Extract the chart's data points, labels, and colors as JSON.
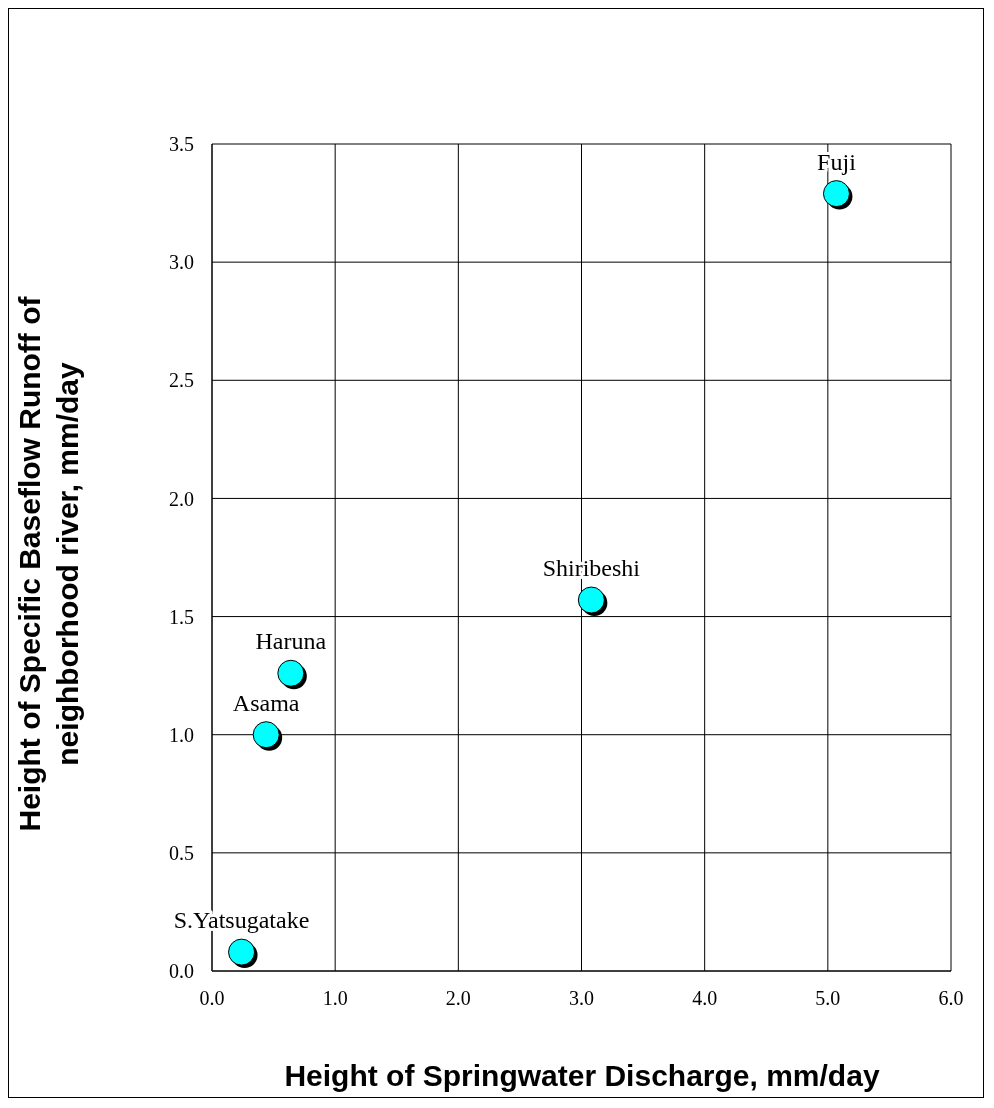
{
  "chart_data": {
    "type": "scatter",
    "xlabel": "Height of Springwater Discharge, mm/day",
    "ylabel": "Height of Specific Baseflow Runoff of\nneighborhood river, mm/day",
    "x": [
      0.24,
      0.44,
      0.64,
      3.08,
      5.07
    ],
    "series": [
      {
        "color": "#00ffff",
        "values": [
          0.08,
          1.0,
          1.26,
          1.57,
          3.29
        ]
      }
    ],
    "annotations": [
      {
        "text": "S.Yatsugatake",
        "x": 0.24,
        "y": 0.08
      },
      {
        "text": "Asama",
        "x": 0.44,
        "y": 1.0
      },
      {
        "text": "Haruna",
        "x": 0.64,
        "y": 1.26
      },
      {
        "text": "Shiribeshi",
        "x": 3.08,
        "y": 1.57
      },
      {
        "text": "Fuji",
        "x": 5.07,
        "y": 3.29
      }
    ],
    "xlim": [
      0,
      6
    ],
    "ylim": [
      0,
      3.5
    ],
    "xticks": [
      {
        "value": 0,
        "label": "0.0"
      },
      {
        "value": 1,
        "label": "1.0"
      },
      {
        "value": 2,
        "label": "2.0"
      },
      {
        "value": 3,
        "label": "3.0"
      },
      {
        "value": 4,
        "label": "4.0"
      },
      {
        "value": 5,
        "label": "5.0"
      },
      {
        "value": 6,
        "label": "6.0"
      }
    ],
    "yticks": [
      {
        "value": 0,
        "label": "0.0"
      },
      {
        "value": 0.5,
        "label": "0.5"
      },
      {
        "value": 1,
        "label": "1.0"
      },
      {
        "value": 1.5,
        "label": "1.5"
      },
      {
        "value": 2,
        "label": "2.0"
      },
      {
        "value": 2.5,
        "label": "2.5"
      },
      {
        "value": 3,
        "label": "3.0"
      },
      {
        "value": 3.5,
        "label": "3.5"
      }
    ],
    "grid": true,
    "legend": false,
    "marker": "circle"
  }
}
